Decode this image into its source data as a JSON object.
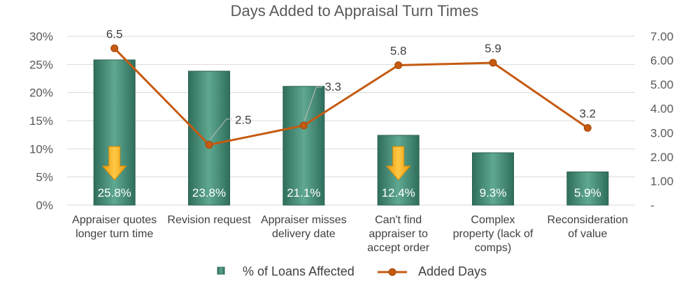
{
  "chart_data": {
    "type": "bar",
    "title": "Days Added to Appraisal Turn Times",
    "categories": [
      [
        "Appraiser quotes",
        "longer turn time"
      ],
      [
        "Revision request"
      ],
      [
        "Appraiser misses",
        "delivery date"
      ],
      [
        "Can't find",
        "appraiser to",
        "accept order"
      ],
      [
        "Complex",
        "property (lack of",
        "comps)"
      ],
      [
        "Reconsideration",
        "of value"
      ]
    ],
    "series": [
      {
        "name": "% of Loans Affected",
        "type": "bar",
        "axis": "left",
        "values": [
          25.8,
          23.8,
          21.1,
          12.4,
          9.3,
          5.9
        ],
        "labels": [
          "25.8%",
          "23.8%",
          "21.1%",
          "12.4%",
          "9.3%",
          "5.9%"
        ],
        "color": "#4e9a83"
      },
      {
        "name": "Added Days",
        "type": "line",
        "axis": "right",
        "values": [
          6.5,
          2.5,
          3.3,
          5.8,
          5.9,
          3.2
        ],
        "labels": [
          "6.5",
          "2.5",
          "3.3",
          "5.8",
          "5.9",
          "3.2"
        ],
        "color": "#c55a11"
      }
    ],
    "left_axis": {
      "ylim": [
        0,
        30
      ],
      "ticks": [
        "0%",
        "5%",
        "10%",
        "15%",
        "20%",
        "25%",
        "30%"
      ]
    },
    "right_axis": {
      "ylim": [
        0,
        7
      ],
      "ticks": [
        "-",
        "1.00",
        "2.00",
        "3.00",
        "4.00",
        "5.00",
        "6.00",
        "7.00"
      ]
    },
    "down_arrow_categories": [
      0,
      3
    ],
    "arrow_color": "#f5a623",
    "grid": true,
    "legend_position": "bottom"
  }
}
